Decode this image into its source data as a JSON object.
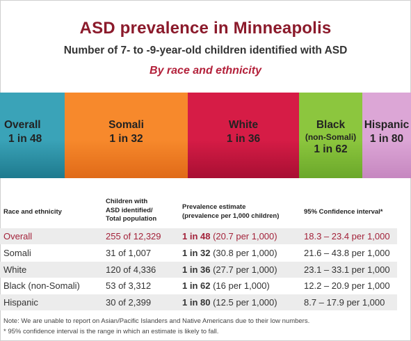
{
  "header": {
    "title": "ASD prevalence in Minneapolis",
    "subtitle": "Number of 7- to -9-year-old children identified with ASD",
    "by_label": "By race and ethnicity"
  },
  "colors": {
    "title": "#8b1a2b",
    "highlight": "#a3223a"
  },
  "chart_data": {
    "type": "bar",
    "categories": [
      "Overall",
      "Somali",
      "White",
      "Black\n(non-Somali)",
      "Hispanic"
    ],
    "values": [
      20.7,
      30.8,
      27.7,
      16,
      12.5
    ],
    "series": [
      {
        "values": [
          20.7,
          30.8,
          27.7,
          16,
          12.5
        ]
      }
    ],
    "ratio_labels": [
      "1 in 48",
      "1 in 32",
      "1 in 36",
      "1 in 62",
      "1 in 80"
    ],
    "band_colors": [
      "#3aa3b8",
      "#f7892c",
      "#d61c46",
      "#8cc63e",
      "#d59ccf"
    ],
    "ylabel": "",
    "xlabel": ""
  },
  "bands": [
    {
      "label": "Overall",
      "ratio": "1 in 48",
      "color": "#3aa3b8",
      "color_dark": "#1e7a8e"
    },
    {
      "label": "Somali",
      "ratio": "1 in 32",
      "color": "#f7892c",
      "color_dark": "#e06a18"
    },
    {
      "label": "White",
      "ratio": "1 in 36",
      "color": "#d61c46",
      "color_dark": "#a80f33"
    },
    {
      "label": "Black",
      "sub": "(non-Somali)",
      "ratio": "1 in 62",
      "color": "#8cc63e",
      "color_dark": "#6ba82a"
    },
    {
      "label": "Hispanic",
      "ratio": "1 in 80",
      "color": "#dca6d6",
      "color_dark": "#c687c0"
    }
  ],
  "table": {
    "headers": [
      "Race and ethnicity",
      "Children with ASD identified/ Total population",
      "Prevalence estimate (prevalence per 1,000 children)",
      "95% Confidence interval*"
    ],
    "header_lines": {
      "col1": [
        "Children with",
        "ASD identified/",
        "Total population"
      ],
      "col2": [
        "Prevalence estimate",
        "(prevalence per 1,000 children)"
      ]
    },
    "rows": [
      {
        "group": "Overall",
        "count": "255 of 12,329",
        "ratio": "1 in 48",
        "rate": "(20.7 per 1,000)",
        "ci": "18.3 – 23.4 per 1,000"
      },
      {
        "group": "Somali",
        "count": "31 of 1,007",
        "ratio": "1 in 32",
        "rate": "(30.8 per 1,000)",
        "ci": "21.6 – 43.8 per 1,000"
      },
      {
        "group": "White",
        "count": "120 of 4,336",
        "ratio": "1 in 36",
        "rate": "(27.7 per 1,000)",
        "ci": "23.1 – 33.1 per 1,000"
      },
      {
        "group": "Black (non-Somali)",
        "count": "53 of 3,312",
        "ratio": "1 in 62",
        "rate": "(16 per 1,000)",
        "ci": "12.2 – 20.9 per 1,000"
      },
      {
        "group": "Hispanic",
        "count": "30 of 2,399",
        "ratio": "1 in 80",
        "rate": "(12.5 per 1,000)",
        "ci": "8.7 – 17.9 per 1,000"
      }
    ]
  },
  "notes": [
    "Note: We are unable to report on Asian/Pacific Islanders and Native Americans due to their low numbers.",
    "* 95% confidence interval is the range in which an estimate is likely to fall."
  ]
}
